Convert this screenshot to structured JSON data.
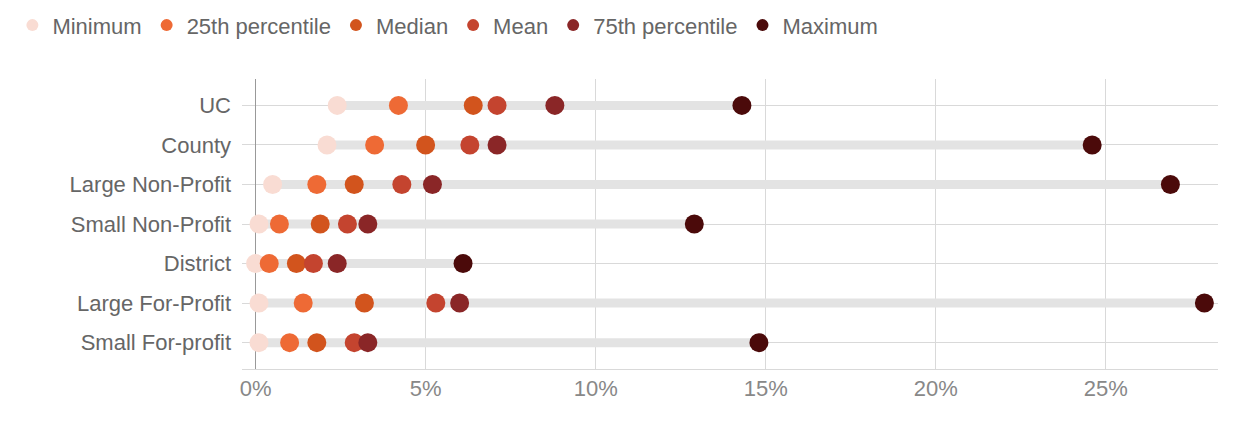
{
  "chart_data": {
    "type": "dot_range",
    "orientation": "horizontal",
    "categories": [
      "UC",
      "County",
      "Large Non-Profit",
      "Small Non-Profit",
      "District",
      "Large For-Profit",
      "Small For-profit"
    ],
    "series": [
      {
        "name": "Minimum",
        "color": "#f9dcd3",
        "values": [
          2.4,
          2.1,
          0.5,
          0.1,
          0.0,
          0.1,
          0.1
        ]
      },
      {
        "name": "25th percentile",
        "color": "#ee6a35",
        "values": [
          4.2,
          3.5,
          1.8,
          0.7,
          0.4,
          1.4,
          1.0
        ]
      },
      {
        "name": "Median",
        "color": "#d2541d",
        "values": [
          6.4,
          5.0,
          2.9,
          1.9,
          1.2,
          3.2,
          1.8
        ]
      },
      {
        "name": "Mean",
        "color": "#c4442f",
        "values": [
          7.1,
          6.3,
          4.3,
          2.7,
          1.7,
          5.3,
          2.9
        ]
      },
      {
        "name": "75th percentile",
        "color": "#8a2627",
        "values": [
          8.8,
          7.1,
          5.2,
          3.3,
          2.4,
          6.0,
          3.3
        ]
      },
      {
        "name": "Maximum",
        "color": "#4b0a0a",
        "values": [
          14.3,
          24.6,
          26.9,
          12.9,
          6.1,
          27.9,
          14.8
        ]
      }
    ],
    "xlim": [
      -0.4,
      28.3
    ],
    "xticks": [
      {
        "value": 0,
        "label": "0%"
      },
      {
        "value": 5,
        "label": "5%"
      },
      {
        "value": 10,
        "label": "10%"
      },
      {
        "value": 15,
        "label": "15%"
      },
      {
        "value": 20,
        "label": "20%"
      },
      {
        "value": 25,
        "label": "25%"
      }
    ],
    "grid": true,
    "legend": "top left"
  }
}
